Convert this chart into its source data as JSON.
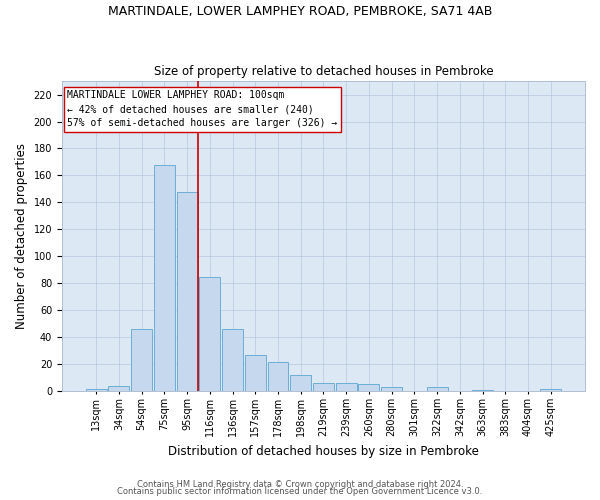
{
  "title": "MARTINDALE, LOWER LAMPHEY ROAD, PEMBROKE, SA71 4AB",
  "subtitle": "Size of property relative to detached houses in Pembroke",
  "xlabel": "Distribution of detached houses by size in Pembroke",
  "ylabel": "Number of detached properties",
  "bar_labels": [
    "13sqm",
    "34sqm",
    "54sqm",
    "75sqm",
    "95sqm",
    "116sqm",
    "136sqm",
    "157sqm",
    "178sqm",
    "198sqm",
    "219sqm",
    "239sqm",
    "260sqm",
    "280sqm",
    "301sqm",
    "322sqm",
    "342sqm",
    "363sqm",
    "383sqm",
    "404sqm",
    "425sqm"
  ],
  "bar_values": [
    2,
    4,
    46,
    168,
    148,
    85,
    46,
    27,
    22,
    12,
    6,
    6,
    5,
    3,
    0,
    3,
    0,
    1,
    0,
    0,
    2
  ],
  "bar_color": "#c5d8ed",
  "bar_edge_color": "#6aaed6",
  "vline_color": "#cc0000",
  "vline_pos": 4.5,
  "annotation_text": "MARTINDALE LOWER LAMPHEY ROAD: 100sqm\n← 42% of detached houses are smaller (240)\n57% of semi-detached houses are larger (326) →",
  "annotation_box_color": "#ffffff",
  "annotation_box_edge": "#cc0000",
  "ylim": [
    0,
    230
  ],
  "yticks": [
    0,
    20,
    40,
    60,
    80,
    100,
    120,
    140,
    160,
    180,
    200,
    220
  ],
  "background_color": "#dde8f5",
  "footer_line1": "Contains HM Land Registry data © Crown copyright and database right 2024.",
  "footer_line2": "Contains public sector information licensed under the Open Government Licence v3.0.",
  "title_fontsize": 9,
  "subtitle_fontsize": 8.5,
  "axis_label_fontsize": 8.5,
  "tick_fontsize": 7,
  "annotation_fontsize": 7,
  "footer_fontsize": 6
}
